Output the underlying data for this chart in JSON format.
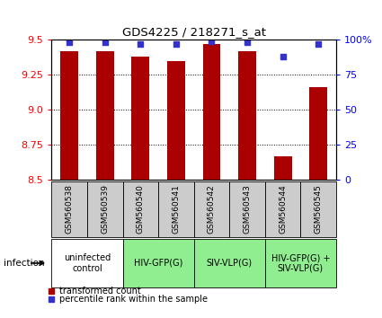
{
  "title": "GDS4225 / 218271_s_at",
  "samples": [
    "GSM560538",
    "GSM560539",
    "GSM560540",
    "GSM560541",
    "GSM560542",
    "GSM560543",
    "GSM560544",
    "GSM560545"
  ],
  "red_values": [
    9.42,
    9.42,
    9.38,
    9.35,
    9.47,
    9.42,
    8.67,
    9.16
  ],
  "blue_values": [
    98,
    98,
    97,
    97,
    99,
    98,
    88,
    97
  ],
  "ylim_left": [
    8.5,
    9.5
  ],
  "ylim_right": [
    0,
    100
  ],
  "yticks_left": [
    8.5,
    8.75,
    9.0,
    9.25,
    9.5
  ],
  "yticks_right": [
    0,
    25,
    50,
    75,
    100
  ],
  "groups": [
    {
      "label": "uninfected\ncontrol",
      "start": 0,
      "end": 2,
      "color": "#ffffff"
    },
    {
      "label": "HIV-GFP(G)",
      "start": 2,
      "end": 4,
      "color": "#90ee90"
    },
    {
      "label": "SIV-VLP(G)",
      "start": 4,
      "end": 6,
      "color": "#90ee90"
    },
    {
      "label": "HIV-GFP(G) +\nSIV-VLP(G)",
      "start": 6,
      "end": 8,
      "color": "#90ee90"
    }
  ],
  "infection_label": "infection",
  "legend_red": "transformed count",
  "legend_blue": "percentile rank within the sample",
  "bar_color": "#aa0000",
  "dot_color": "#3333cc",
  "label_area_color": "#cccccc",
  "group_border_color": "#000000"
}
